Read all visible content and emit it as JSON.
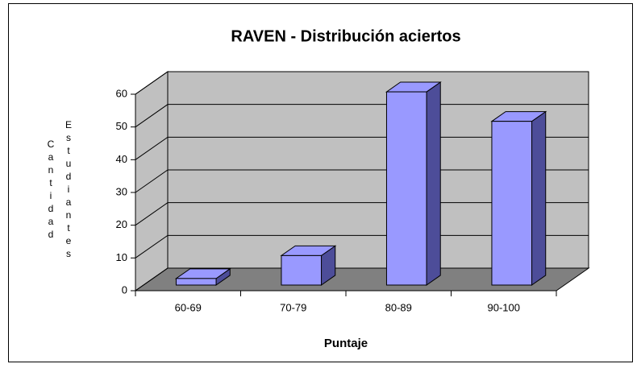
{
  "chart_data": {
    "type": "bar3d",
    "title": "RAVEN - Distribución aciertos",
    "x_label": "Puntaje",
    "y_label": "Cantidad Estudiantes",
    "categories": [
      "60-69",
      "70-79",
      "80-89",
      "90-100"
    ],
    "values": [
      2,
      9,
      59,
      50
    ],
    "color": "#9999ff",
    "ylim": [
      0,
      60
    ],
    "yticks": [
      0,
      10,
      20,
      30,
      40,
      50,
      60
    ],
    "grid": true
  }
}
